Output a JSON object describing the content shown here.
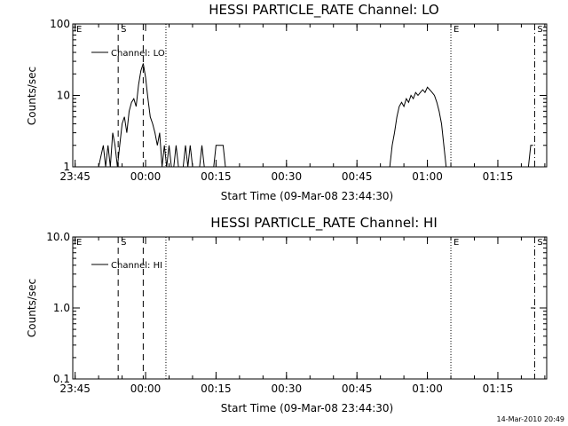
{
  "chart_data": [
    {
      "type": "line",
      "title": "HESSI PARTICLE_RATE Channel: LO",
      "ylabel": "Counts/sec",
      "xlabel": "Start Time (09-Mar-08 23:44:30)",
      "x_tick_labels": [
        "23:45",
        "00:00",
        "00:15",
        "00:30",
        "00:45",
        "01:00",
        "01:15"
      ],
      "y_tick_labels": [
        "1",
        "10",
        "100"
      ],
      "ylim": [
        1,
        100
      ],
      "y_scale": "log",
      "legend": "Channel: LO",
      "markers": [
        "E",
        "S",
        "E",
        "S"
      ],
      "series": [
        {
          "name": "Channel: LO",
          "x": [
            "23:50:00",
            "23:51:00",
            "23:51:30",
            "23:52:00",
            "23:52:30",
            "23:53:00",
            "23:53:30",
            "23:54:00",
            "23:54:30",
            "23:55:00",
            "23:55:30",
            "23:56:00",
            "23:56:30",
            "23:57:00",
            "23:57:30",
            "23:58:00",
            "23:58:30",
            "23:59:00",
            "23:59:30",
            "00:00:00",
            "00:00:30",
            "00:01:00",
            "00:01:30",
            "00:02:00",
            "00:02:30",
            "00:03:00",
            "00:03:30",
            "00:04:00",
            "00:04:30",
            "00:05:00",
            "00:05:30",
            "00:06:00",
            "00:06:30",
            "00:07:00",
            "00:07:30",
            "00:08:00",
            "00:08:30",
            "00:09:00",
            "00:09:30",
            "00:10:00",
            "00:10:30",
            "00:11:00",
            "00:11:30",
            "00:12:00",
            "00:12:30",
            "00:13:00",
            "00:14:30",
            "00:15:00",
            "00:15:30",
            "00:16:00",
            "00:16:30",
            "00:17:00"
          ],
          "y": [
            1,
            2,
            1,
            2,
            1,
            3,
            2,
            1,
            2,
            4,
            5,
            3,
            6,
            8,
            9,
            7,
            14,
            22,
            28,
            18,
            9,
            5,
            4,
            3,
            2,
            3,
            1,
            2,
            1,
            2,
            1,
            1,
            2,
            1,
            1,
            1,
            2,
            1,
            2,
            1,
            1,
            1,
            1,
            2,
            1,
            1,
            1,
            2,
            2,
            2,
            2,
            1
          ]
        },
        {
          "name": "Channel: LO",
          "x": [
            "00:52:00",
            "00:52:30",
            "00:53:00",
            "00:53:30",
            "00:54:00",
            "00:54:30",
            "00:55:00",
            "00:55:30",
            "00:56:00",
            "00:56:30",
            "00:57:00",
            "00:57:30",
            "00:58:00",
            "00:58:30",
            "00:59:00",
            "00:59:30",
            "01:00:00",
            "01:00:30",
            "01:01:00",
            "01:01:30",
            "01:02:00",
            "01:02:30",
            "01:03:00",
            "01:03:30",
            "01:04:00"
          ],
          "y": [
            1,
            2,
            3,
            5,
            7,
            8,
            7,
            9,
            8,
            10,
            9,
            11,
            10,
            11,
            12,
            11,
            13,
            12,
            11,
            10,
            8,
            6,
            4,
            2,
            1
          ]
        },
        {
          "name": "Channel: LO",
          "x": [
            "01:21:30",
            "01:22:00",
            "01:22:30"
          ],
          "y": [
            1,
            2,
            2
          ]
        }
      ]
    },
    {
      "type": "line",
      "title": "HESSI PARTICLE_RATE Channel: HI",
      "ylabel": "Counts/sec",
      "xlabel": "Start Time (09-Mar-08 23:44:30)",
      "x_tick_labels": [
        "23:45",
        "00:00",
        "00:15",
        "00:30",
        "00:45",
        "01:00",
        "01:15"
      ],
      "y_tick_labels": [
        "0.1",
        "1.0",
        "10.0"
      ],
      "ylim": [
        0.1,
        10
      ],
      "y_scale": "log",
      "legend": "Channel: HI",
      "markers": [
        "E",
        "S",
        "E",
        "S"
      ],
      "series": [
        {
          "name": "Channel: HI",
          "x": [
            "01:22:00",
            "01:23:00"
          ],
          "y": [
            1.0,
            1.0
          ]
        }
      ]
    }
  ],
  "footer": {
    "timestamp": "14-Mar-2010 20:49"
  }
}
